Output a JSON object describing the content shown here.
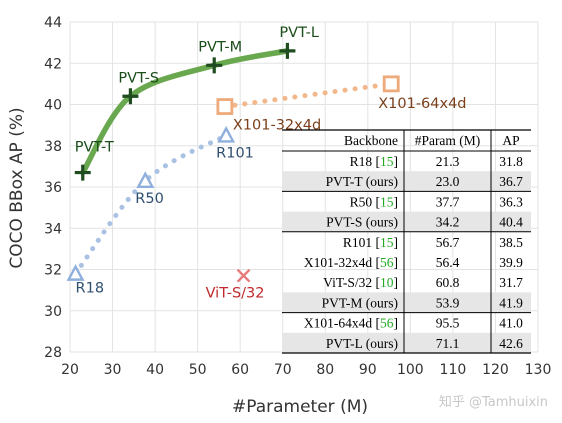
{
  "watermark": "知乎 @Tamhuixin",
  "chart_data": {
    "type": "scatter",
    "title": "",
    "xlabel": "#Parameter (M)",
    "ylabel": "COCO BBox AP (%)",
    "xlim": [
      20,
      130
    ],
    "ylim": [
      28,
      44
    ],
    "xticks": [
      20,
      30,
      40,
      50,
      60,
      70,
      80,
      90,
      100,
      110,
      120,
      130
    ],
    "yticks": [
      28,
      30,
      32,
      34,
      36,
      38,
      40,
      42,
      44
    ],
    "grid": true,
    "series": [
      {
        "name": "PVT",
        "color": "#6aa84f",
        "marker": "plus",
        "line": "solid",
        "points": [
          {
            "x": 23.0,
            "y": 36.7,
            "label": "PVT-T"
          },
          {
            "x": 34.2,
            "y": 40.4,
            "label": "PVT-S"
          },
          {
            "x": 53.9,
            "y": 41.9,
            "label": "PVT-M"
          },
          {
            "x": 71.1,
            "y": 42.6,
            "label": "PVT-L"
          }
        ]
      },
      {
        "name": "ResNet",
        "color": "#a9c1e3",
        "marker": "triangle",
        "line": "dotted",
        "label_color": "#2f4f6f",
        "points": [
          {
            "x": 21.3,
            "y": 31.8,
            "label": "R18"
          },
          {
            "x": 37.7,
            "y": 36.3,
            "label": "R50"
          },
          {
            "x": 56.7,
            "y": 38.5,
            "label": "R101"
          }
        ]
      },
      {
        "name": "ResNeXt",
        "color": "#f2b88c",
        "marker": "square",
        "line": "dotted",
        "label_color": "#7b3f1b",
        "points": [
          {
            "x": 56.4,
            "y": 39.9,
            "label": "X101-32x4d"
          },
          {
            "x": 95.5,
            "y": 41.0,
            "label": "X101-64x4d"
          }
        ]
      },
      {
        "name": "ViT",
        "color": "#e8797a",
        "marker": "x",
        "line": "none",
        "label_color": "#c0292b",
        "points": [
          {
            "x": 60.8,
            "y": 31.7,
            "label": "ViT-S/32"
          }
        ]
      }
    ],
    "table": {
      "headers": [
        "Backbone",
        "#Param (M)",
        "AP"
      ],
      "groups": [
        [
          {
            "name": "R18",
            "ref": "15",
            "params": "21.3",
            "ap": "31.8",
            "shaded": false
          },
          {
            "name": "PVT-T (ours)",
            "ref": "",
            "params": "23.0",
            "ap": "36.7",
            "shaded": true
          }
        ],
        [
          {
            "name": "R50",
            "ref": "15",
            "params": "37.7",
            "ap": "36.3",
            "shaded": false
          },
          {
            "name": "PVT-S (ours)",
            "ref": "",
            "params": "34.2",
            "ap": "40.4",
            "shaded": true
          }
        ],
        [
          {
            "name": "R101",
            "ref": "15",
            "params": "56.7",
            "ap": "38.5",
            "shaded": false
          },
          {
            "name": "X101-32x4d",
            "ref": "56",
            "params": "56.4",
            "ap": "39.9",
            "shaded": false
          },
          {
            "name": "ViT-S/32",
            "ref": "10",
            "params": "60.8",
            "ap": "31.7",
            "shaded": false
          },
          {
            "name": "PVT-M (ours)",
            "ref": "",
            "params": "53.9",
            "ap": "41.9",
            "shaded": true
          }
        ],
        [
          {
            "name": "X101-64x4d",
            "ref": "56",
            "params": "95.5",
            "ap": "41.0",
            "shaded": false
          },
          {
            "name": "PVT-L (ours)",
            "ref": "",
            "params": "71.1",
            "ap": "42.6",
            "shaded": true
          }
        ]
      ],
      "ref_color": "#22aa22",
      "shade_color": "#e6e6e6"
    }
  }
}
